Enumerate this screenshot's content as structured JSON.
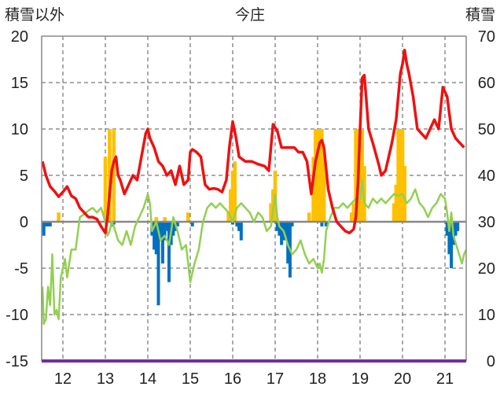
{
  "chart_data": {
    "type": "line",
    "title": "今庄",
    "left_axis_label": "積雪以外",
    "right_axis_label": "積雪",
    "x_ticks": [
      "12",
      "13",
      "14",
      "15",
      "16",
      "17",
      "18",
      "19",
      "20",
      "21"
    ],
    "x_range": [
      11.5,
      21.5
    ],
    "y_left_range": [
      -15,
      20
    ],
    "y_left_ticks": [
      "20",
      "15",
      "10",
      "5",
      "0",
      "-5",
      "-10",
      "-15"
    ],
    "y_right_range": [
      0,
      70
    ],
    "y_right_ticks": [
      "70",
      "60",
      "50",
      "40",
      "30",
      "20",
      "10",
      "0"
    ],
    "grid": true,
    "colors": {
      "red_line": "#ee1111",
      "green_line": "#92d050",
      "orange_bars": "#ffc000",
      "blue_bars": "#0070c0",
      "axis_bottom": "#7030a0",
      "zero_line": "#888888"
    },
    "series": [
      {
        "axis": "left",
        "type": "line",
        "color": "#ee1111",
        "points": [
          [
            11.52,
            6.5
          ],
          [
            11.6,
            5
          ],
          [
            11.7,
            3.8
          ],
          [
            11.8,
            3.3
          ],
          [
            11.9,
            2.7
          ],
          [
            12.0,
            3.2
          ],
          [
            12.1,
            3.8
          ],
          [
            12.2,
            2.8
          ],
          [
            12.3,
            2.5
          ],
          [
            12.4,
            1.5
          ],
          [
            12.5,
            1.0
          ],
          [
            12.6,
            0.5
          ],
          [
            12.7,
            0.5
          ],
          [
            12.8,
            0.3
          ],
          [
            12.9,
            -0.5
          ],
          [
            13.0,
            -1.2
          ],
          [
            13.05,
            0.5
          ],
          [
            13.1,
            3.0
          ],
          [
            13.15,
            5.5
          ],
          [
            13.2,
            6.5
          ],
          [
            13.25,
            7.0
          ],
          [
            13.3,
            5.0
          ],
          [
            13.35,
            4.5
          ],
          [
            13.45,
            3.0
          ],
          [
            13.55,
            4.0
          ],
          [
            13.65,
            5.0
          ],
          [
            13.75,
            4.5
          ],
          [
            13.85,
            7.0
          ],
          [
            13.95,
            9.5
          ],
          [
            14.0,
            10.0
          ],
          [
            14.05,
            9.0
          ],
          [
            14.15,
            8.0
          ],
          [
            14.25,
            6.5
          ],
          [
            14.35,
            6.0
          ],
          [
            14.45,
            5.0
          ],
          [
            14.55,
            5.5
          ],
          [
            14.65,
            4.0
          ],
          [
            14.75,
            6.0
          ],
          [
            14.85,
            4.0
          ],
          [
            14.95,
            4.5
          ],
          [
            15.0,
            7.5
          ],
          [
            15.05,
            7.8
          ],
          [
            15.15,
            7.5
          ],
          [
            15.25,
            7.0
          ],
          [
            15.35,
            4.0
          ],
          [
            15.45,
            3.5
          ],
          [
            15.55,
            3.6
          ],
          [
            15.65,
            3.5
          ],
          [
            15.75,
            3.2
          ],
          [
            15.85,
            4.5
          ],
          [
            15.92,
            8.0
          ],
          [
            16.0,
            10.8
          ],
          [
            16.08,
            9.0
          ],
          [
            16.15,
            7.0
          ],
          [
            16.3,
            6.5
          ],
          [
            16.45,
            6.5
          ],
          [
            16.6,
            6.2
          ],
          [
            16.75,
            6.0
          ],
          [
            16.85,
            5.5
          ],
          [
            16.95,
            10.5
          ],
          [
            17.05,
            9.8
          ],
          [
            17.15,
            8.0
          ],
          [
            17.3,
            8.0
          ],
          [
            17.45,
            8.0
          ],
          [
            17.55,
            7.5
          ],
          [
            17.65,
            7.5
          ],
          [
            17.75,
            6.5
          ],
          [
            17.85,
            3.0
          ],
          [
            17.95,
            6.5
          ],
          [
            18.05,
            8.5
          ],
          [
            18.1,
            8.8
          ],
          [
            18.15,
            8.0
          ],
          [
            18.25,
            3.5
          ],
          [
            18.35,
            1.5
          ],
          [
            18.45,
            0.0
          ],
          [
            18.55,
            -0.5
          ],
          [
            18.65,
            -1.0
          ],
          [
            18.75,
            -1.2
          ],
          [
            18.85,
            -0.8
          ],
          [
            18.9,
            0.5
          ],
          [
            18.95,
            4.0
          ],
          [
            19.0,
            10.0
          ],
          [
            19.05,
            15.5
          ],
          [
            19.1,
            15.8
          ],
          [
            19.15,
            13.0
          ],
          [
            19.2,
            10.0
          ],
          [
            19.3,
            8.5
          ],
          [
            19.45,
            6.0
          ],
          [
            19.5,
            5.0
          ],
          [
            19.6,
            5.5
          ],
          [
            19.75,
            8.5
          ],
          [
            19.85,
            11.0
          ],
          [
            19.95,
            16.0
          ],
          [
            20.0,
            17.0
          ],
          [
            20.05,
            18.5
          ],
          [
            20.1,
            17.0
          ],
          [
            20.15,
            16.0
          ],
          [
            20.25,
            13.5
          ],
          [
            20.35,
            10.0
          ],
          [
            20.45,
            9.5
          ],
          [
            20.55,
            9.0
          ],
          [
            20.65,
            10.0
          ],
          [
            20.75,
            11.0
          ],
          [
            20.85,
            10.0
          ],
          [
            20.95,
            14.5
          ],
          [
            21.05,
            13.5
          ],
          [
            21.15,
            10.0
          ],
          [
            21.25,
            9.0
          ],
          [
            21.35,
            8.5
          ],
          [
            21.45,
            8.0
          ]
        ]
      },
      {
        "axis": "left",
        "type": "line",
        "color": "#92d050",
        "points": [
          [
            11.52,
            -7
          ],
          [
            11.55,
            -11
          ],
          [
            11.6,
            -10.5
          ],
          [
            11.65,
            -7
          ],
          [
            11.7,
            -9
          ],
          [
            11.75,
            -3.5
          ],
          [
            11.8,
            -10
          ],
          [
            11.85,
            -9.5
          ],
          [
            11.9,
            -10.5
          ],
          [
            11.95,
            -6
          ],
          [
            12.0,
            -5
          ],
          [
            12.05,
            -4
          ],
          [
            12.1,
            -6
          ],
          [
            12.2,
            -3
          ],
          [
            12.3,
            -3
          ],
          [
            12.4,
            0.5
          ],
          [
            12.5,
            0.8
          ],
          [
            12.6,
            1.2
          ],
          [
            12.7,
            1.5
          ],
          [
            12.8,
            1.0
          ],
          [
            12.9,
            1.5
          ],
          [
            13.0,
            0.0
          ],
          [
            13.05,
            -1.5
          ],
          [
            13.1,
            -1.0
          ],
          [
            13.15,
            0.0
          ],
          [
            13.2,
            -0.5
          ],
          [
            13.3,
            -2.0
          ],
          [
            13.4,
            -2.5
          ],
          [
            13.5,
            -1.0
          ],
          [
            13.6,
            -2.5
          ],
          [
            13.7,
            -0.5
          ],
          [
            13.8,
            0.5
          ],
          [
            13.9,
            1.5
          ],
          [
            14.0,
            3.0
          ],
          [
            14.05,
            2.0
          ],
          [
            14.1,
            -1.0
          ],
          [
            14.2,
            0.0
          ],
          [
            14.3,
            -2.0
          ],
          [
            14.4,
            -1.5
          ],
          [
            14.5,
            -2.5
          ],
          [
            14.6,
            0.5
          ],
          [
            14.7,
            -1.0
          ],
          [
            14.8,
            -3.0
          ],
          [
            14.9,
            -2.5
          ],
          [
            15.0,
            -6.5
          ],
          [
            15.1,
            -4.5
          ],
          [
            15.2,
            -3.0
          ],
          [
            15.3,
            0.0
          ],
          [
            15.4,
            1.5
          ],
          [
            15.5,
            2.0
          ],
          [
            15.6,
            1.5
          ],
          [
            15.7,
            2.0
          ],
          [
            15.8,
            1.5
          ],
          [
            15.9,
            1.0
          ],
          [
            16.0,
            0.0
          ],
          [
            16.1,
            1.5
          ],
          [
            16.2,
            2.0
          ],
          [
            16.3,
            1.5
          ],
          [
            16.4,
            1.0
          ],
          [
            16.5,
            0.0
          ],
          [
            16.6,
            1.0
          ],
          [
            16.7,
            0.5
          ],
          [
            16.8,
            -1.0
          ],
          [
            16.9,
            -0.5
          ],
          [
            17.0,
            3.0
          ],
          [
            17.05,
            0.5
          ],
          [
            17.1,
            -0.5
          ],
          [
            17.2,
            -1.0
          ],
          [
            17.3,
            -2.5
          ],
          [
            17.4,
            -3.5
          ],
          [
            17.5,
            -3.0
          ],
          [
            17.6,
            -2.0
          ],
          [
            17.7,
            -3.5
          ],
          [
            17.8,
            -4.5
          ],
          [
            17.9,
            -4.0
          ],
          [
            18.0,
            -5.0
          ],
          [
            18.05,
            -4.5
          ],
          [
            18.1,
            -5.5
          ],
          [
            18.15,
            -4.0
          ],
          [
            18.2,
            -1.0
          ],
          [
            18.3,
            0.5
          ],
          [
            18.4,
            1.5
          ],
          [
            18.5,
            1.5
          ],
          [
            18.6,
            2.0
          ],
          [
            18.7,
            1.5
          ],
          [
            18.8,
            2.0
          ],
          [
            18.9,
            2.5
          ],
          [
            19.0,
            2.5
          ],
          [
            19.05,
            4.5
          ],
          [
            19.1,
            2.0
          ],
          [
            19.2,
            1.5
          ],
          [
            19.3,
            2.5
          ],
          [
            19.4,
            2.0
          ],
          [
            19.5,
            2.5
          ],
          [
            19.6,
            2.0
          ],
          [
            19.7,
            2.5
          ],
          [
            19.8,
            3.0
          ],
          [
            19.9,
            2.8
          ],
          [
            20.0,
            3.0
          ],
          [
            20.05,
            2.5
          ],
          [
            20.1,
            2.0
          ],
          [
            20.2,
            2.5
          ],
          [
            20.3,
            3.5
          ],
          [
            20.4,
            2.0
          ],
          [
            20.5,
            1.5
          ],
          [
            20.6,
            0.5
          ],
          [
            20.7,
            1.5
          ],
          [
            20.8,
            2.0
          ],
          [
            20.9,
            3.0
          ],
          [
            21.0,
            2.5
          ],
          [
            21.05,
            1.0
          ],
          [
            21.1,
            -1.0
          ],
          [
            21.15,
            1.0
          ],
          [
            21.2,
            -1.5
          ],
          [
            21.3,
            -3.0
          ],
          [
            21.4,
            -4.5
          ],
          [
            21.45,
            -3.5
          ],
          [
            21.5,
            -3.0
          ]
        ]
      },
      {
        "axis": "right",
        "type": "bar",
        "color": "#ffc000",
        "bars": [
          [
            11.9,
            32
          ],
          [
            13.0,
            44
          ],
          [
            13.1,
            50
          ],
          [
            13.2,
            50
          ],
          [
            14.2,
            31
          ],
          [
            14.4,
            31
          ],
          [
            14.95,
            32
          ],
          [
            15.9,
            32
          ],
          [
            15.95,
            37
          ],
          [
            16.0,
            41
          ],
          [
            16.05,
            43
          ],
          [
            16.9,
            34
          ],
          [
            16.95,
            37
          ],
          [
            17.0,
            41
          ],
          [
            17.8,
            32
          ],
          [
            17.9,
            44
          ],
          [
            17.95,
            50
          ],
          [
            18.0,
            50
          ],
          [
            18.05,
            50
          ],
          [
            18.1,
            50
          ],
          [
            18.15,
            45
          ],
          [
            18.8,
            32
          ],
          [
            18.85,
            34
          ],
          [
            18.9,
            50
          ],
          [
            18.95,
            50
          ],
          [
            19.0,
            50
          ],
          [
            19.05,
            50
          ],
          [
            19.1,
            42
          ],
          [
            19.8,
            34
          ],
          [
            19.85,
            38
          ],
          [
            19.9,
            50
          ],
          [
            19.95,
            50
          ],
          [
            20.0,
            50
          ],
          [
            20.05,
            42
          ]
        ]
      },
      {
        "axis": "left",
        "type": "bar",
        "color": "#0070c0",
        "bars": [
          [
            11.55,
            -1.5
          ],
          [
            11.6,
            -0.5
          ],
          [
            11.65,
            -0.5
          ],
          [
            11.7,
            -0.5
          ],
          [
            13.15,
            -0.5
          ],
          [
            13.2,
            -0.3
          ],
          [
            14.1,
            -1.5
          ],
          [
            14.15,
            -3.0
          ],
          [
            14.2,
            -3.5
          ],
          [
            14.25,
            -9.0
          ],
          [
            14.3,
            -2.0
          ],
          [
            14.35,
            -4.5
          ],
          [
            14.4,
            -2.0
          ],
          [
            14.45,
            -1.0
          ],
          [
            14.5,
            -6.5
          ],
          [
            14.55,
            -2.5
          ],
          [
            14.6,
            -1.5
          ],
          [
            14.65,
            -1.0
          ],
          [
            14.7,
            -0.5
          ],
          [
            15.05,
            -0.5
          ],
          [
            16.0,
            -0.3
          ],
          [
            16.1,
            -0.5
          ],
          [
            16.15,
            -1.0
          ],
          [
            16.2,
            -2.0
          ],
          [
            17.05,
            -1.0
          ],
          [
            17.1,
            -1.5
          ],
          [
            17.15,
            -2.5
          ],
          [
            17.2,
            -2.0
          ],
          [
            17.25,
            -1.5
          ],
          [
            17.3,
            -4.5
          ],
          [
            17.35,
            -6.0
          ],
          [
            17.4,
            -0.5
          ],
          [
            18.1,
            -0.5
          ],
          [
            18.2,
            -0.5
          ],
          [
            21.05,
            -1.5
          ],
          [
            21.1,
            -3.5
          ],
          [
            21.15,
            -5.0
          ],
          [
            21.2,
            -2.5
          ],
          [
            21.25,
            -1.5
          ],
          [
            21.3,
            -1.0
          ]
        ]
      }
    ]
  }
}
